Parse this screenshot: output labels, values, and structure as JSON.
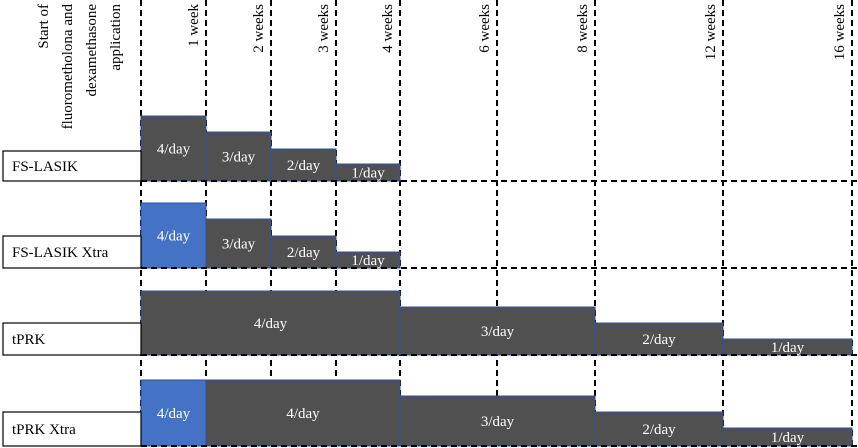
{
  "header": {
    "lines": [
      "Start of",
      "fluorometholona and",
      "dexamethasone",
      "application"
    ],
    "columns": [
      "1 week",
      "2 weeks",
      "3 weeks",
      "4 weeks",
      "6 weeks",
      "8 weeks",
      "12 weeks",
      "16 weeks"
    ]
  },
  "rows": [
    {
      "label": "FS-LASIK",
      "segments": [
        {
          "label": "4/day",
          "color": "#505050"
        },
        {
          "label": "3/day",
          "color": "#505050"
        },
        {
          "label": "2/day",
          "color": "#505050"
        },
        {
          "label": "1/day",
          "color": "#505050"
        }
      ]
    },
    {
      "label": "FS-LASIK Xtra",
      "segments": [
        {
          "label": "4/day",
          "color": "#4472c4"
        },
        {
          "label": "3/day",
          "color": "#505050"
        },
        {
          "label": "2/day",
          "color": "#505050"
        },
        {
          "label": "1/day",
          "color": "#505050"
        }
      ]
    },
    {
      "label": "tPRK",
      "segments": [
        {
          "label": "4/day",
          "color": "#505050"
        },
        {
          "label": "3/day",
          "color": "#505050"
        },
        {
          "label": "2/day",
          "color": "#505050"
        },
        {
          "label": "1/day",
          "color": "#505050"
        }
      ]
    },
    {
      "label": "tPRK Xtra",
      "segments": [
        {
          "label": "4/day",
          "color": "#4472c4"
        },
        {
          "label": "4/day",
          "color": "#505050"
        },
        {
          "label": "3/day",
          "color": "#505050"
        },
        {
          "label": "2/day",
          "color": "#505050"
        },
        {
          "label": "1/day",
          "color": "#505050"
        }
      ]
    }
  ]
}
